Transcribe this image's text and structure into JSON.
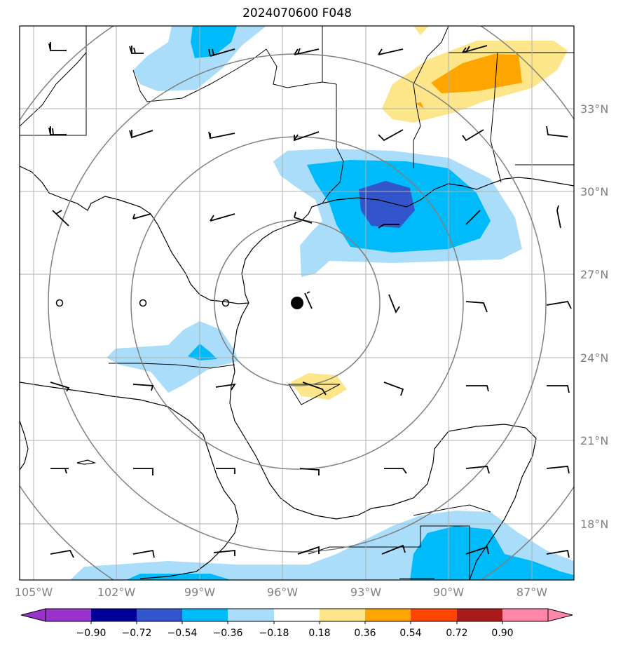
{
  "title": "2024070600 F048",
  "map": {
    "lon_range": [
      -105.5,
      -85.5
    ],
    "lat_range": [
      15.5,
      35.5
    ],
    "lat_labels": [
      {
        "lat": 33,
        "text": "33°N"
      },
      {
        "lat": 30,
        "text": "30°N"
      },
      {
        "lat": 27,
        "text": "27°N"
      },
      {
        "lat": 24,
        "text": "24°N"
      },
      {
        "lat": 21,
        "text": "21°N"
      },
      {
        "lat": 18,
        "text": "18°N"
      }
    ],
    "lon_labels": [
      {
        "lon": -105,
        "text": "105°W"
      },
      {
        "lon": -102,
        "text": "102°W"
      },
      {
        "lon": -99,
        "text": "99°W"
      },
      {
        "lon": -96,
        "text": "96°W"
      },
      {
        "lon": -93,
        "text": "93°W"
      },
      {
        "lon": -90,
        "text": "90°W"
      },
      {
        "lon": -87,
        "text": "87°W"
      }
    ],
    "storm_center": {
      "lon": -95.5,
      "lat": 25.9
    },
    "range_rings_deg": [
      3,
      6,
      9,
      12
    ]
  },
  "colorbar": {
    "ticks": [
      "−0.90",
      "−0.72",
      "−0.54",
      "−0.36",
      "−0.18",
      "0.18",
      "0.36",
      "0.54",
      "0.72",
      "0.90"
    ],
    "colors": [
      "#9933cc",
      "#000099",
      "#3355cc",
      "#00bbf9",
      "#aaddf9",
      "#ffffff",
      "#fde68a",
      "#ffa500",
      "#ff4500",
      "#aa1a1a",
      "#ff88aa"
    ]
  }
}
